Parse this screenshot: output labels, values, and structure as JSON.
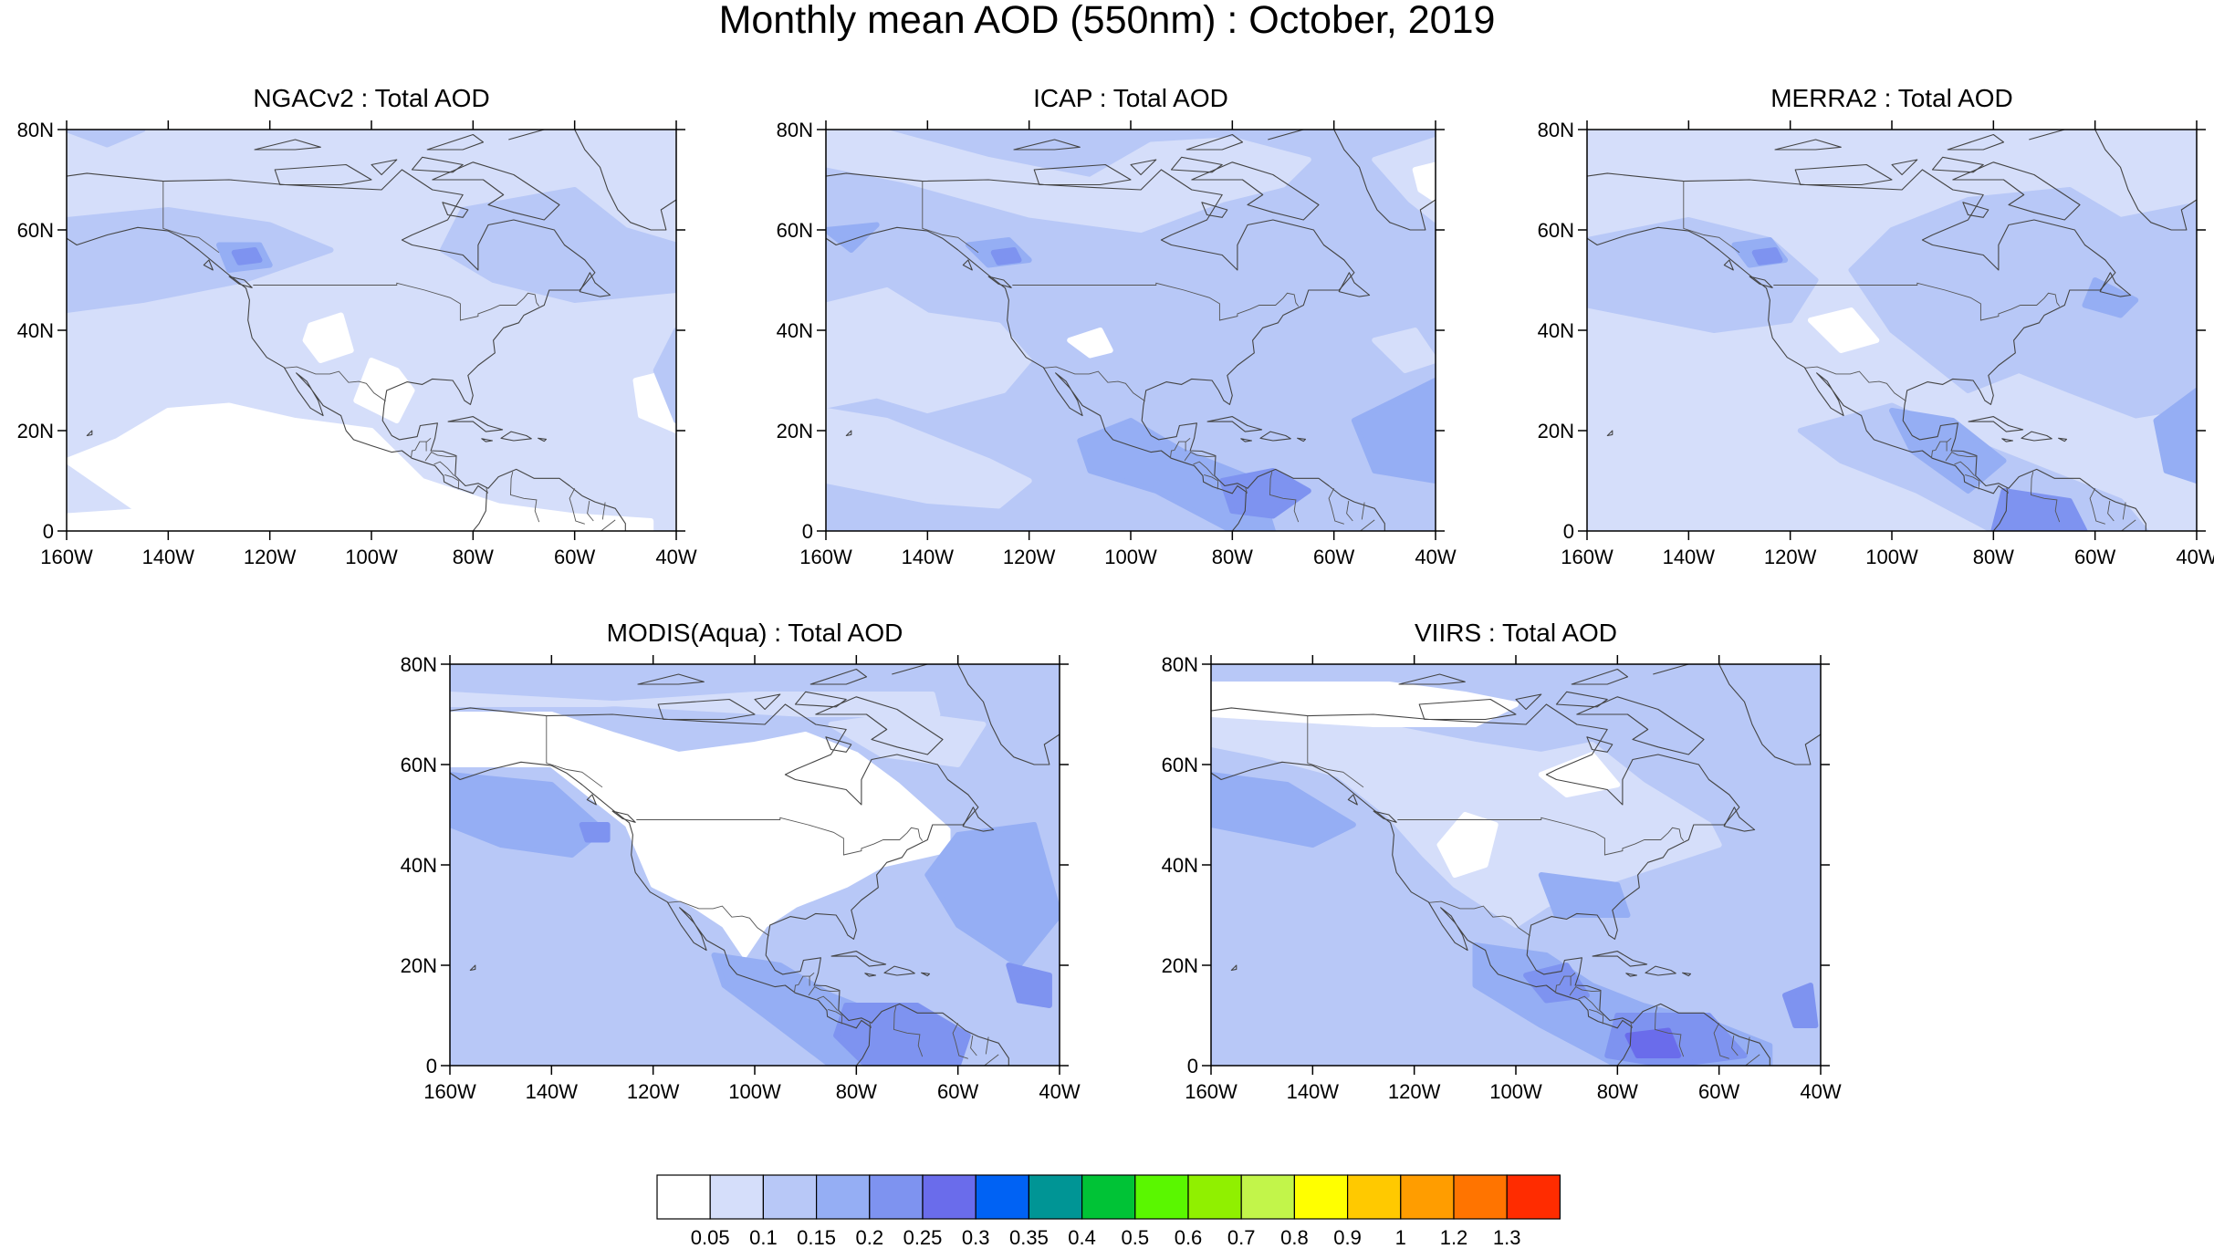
{
  "title": "Monthly mean AOD (550nm) : October, 2019",
  "lat_labels": [
    "80N",
    "60N",
    "40N",
    "20N",
    "0"
  ],
  "lon_labels": [
    "160W",
    "140W",
    "120W",
    "100W",
    "80W",
    "60W",
    "40W"
  ],
  "panels": [
    {
      "title": "NGACv2 : Total AOD"
    },
    {
      "title": "ICAP : Total AOD"
    },
    {
      "title": "MERRA2 : Total AOD"
    },
    {
      "title": "MODIS(Aqua) : Total AOD"
    },
    {
      "title": "VIIRS : Total AOD"
    }
  ],
  "colorbar": {
    "colors": [
      "#ffffff",
      "#d5defa",
      "#b8c8f7",
      "#95aef4",
      "#7e93f0",
      "#6a6ceb",
      "#0062f4",
      "#009595",
      "#00c336",
      "#5af700",
      "#90f000",
      "#c2f54a",
      "#ffff00",
      "#ffc900",
      "#ff9d00",
      "#ff7400",
      "#ff2c00"
    ],
    "labels": [
      "0.05",
      "0.1",
      "0.15",
      "0.2",
      "0.25",
      "0.3",
      "0.35",
      "0.4",
      "0.5",
      "0.6",
      "0.7",
      "0.8",
      "0.9",
      "1",
      "1.2",
      "1.3"
    ]
  }
}
